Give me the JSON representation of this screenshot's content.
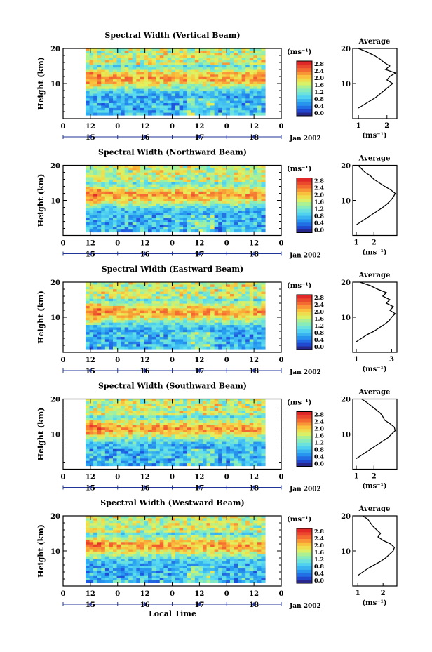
{
  "figure": {
    "xlabel": "Local Time",
    "date_label": "Jan 2002",
    "colorbar_unit": "(ms⁻¹)",
    "average_title": "Average",
    "average_xlabel": "(ms⁻¹)"
  },
  "chart_data": [
    {
      "type": "heatmap",
      "title": "Spectral Width (Vertical Beam)",
      "ylabel": "Height (km)",
      "xlabel": "Local Time",
      "hour_ticks": [
        "0",
        "12",
        "0",
        "12",
        "0",
        "12",
        "0",
        "12",
        "0"
      ],
      "day_ticks": [
        "15",
        "16",
        "17",
        "18"
      ],
      "ylim": [
        0,
        20
      ],
      "y_ticks": [
        "20",
        "10"
      ],
      "colorbar": {
        "ticks": [
          "2.8",
          "2.4",
          "2.0",
          "1.6",
          "1.2",
          "0.8",
          "0.4",
          "0.0"
        ],
        "range": [
          0,
          2.8
        ]
      },
      "profile": {
        "title": "Average",
        "xlabel": "(ms⁻¹)",
        "xlim": [
          0.8,
          2.35
        ],
        "xticks": [
          1,
          2
        ],
        "heights": [
          3,
          4,
          5,
          6,
          7,
          8,
          9,
          10,
          11,
          12,
          13,
          14,
          15,
          16,
          17,
          18,
          19,
          20
        ],
        "values": [
          1.0,
          1.2,
          1.4,
          1.6,
          1.75,
          1.9,
          2.05,
          2.2,
          2.0,
          2.1,
          2.3,
          1.95,
          2.1,
          1.9,
          1.75,
          1.55,
          1.3,
          1.0
        ]
      }
    },
    {
      "type": "heatmap",
      "title": "Spectral Width (Northward Beam)",
      "ylabel": "Height (km)",
      "xlabel": "Local Time",
      "hour_ticks": [
        "0",
        "12",
        "0",
        "12",
        "0",
        "12",
        "0",
        "12",
        "0"
      ],
      "day_ticks": [
        "15",
        "16",
        "17",
        "18"
      ],
      "ylim": [
        0,
        20
      ],
      "y_ticks": [
        "20",
        "10"
      ],
      "colorbar": {
        "ticks": [
          "2.8",
          "2.4",
          "2.0",
          "1.6",
          "1.2",
          "0.8",
          "0.4",
          "0.0"
        ],
        "range": [
          0,
          2.8
        ]
      },
      "profile": {
        "title": "Average",
        "xlabel": "(ms⁻¹)",
        "xlim": [
          0.8,
          3.3
        ],
        "xticks": [
          1,
          2
        ],
        "heights": [
          3,
          4,
          5,
          6,
          7,
          8,
          9,
          10,
          11,
          12,
          13,
          14,
          15,
          16,
          17,
          18,
          19,
          20
        ],
        "values": [
          1.0,
          1.3,
          1.6,
          1.9,
          2.2,
          2.5,
          2.75,
          2.95,
          3.1,
          3.2,
          2.95,
          2.6,
          2.3,
          2.0,
          1.8,
          1.5,
          1.3,
          1.1
        ]
      }
    },
    {
      "type": "heatmap",
      "title": "Spectral Width (Eastward Beam)",
      "ylabel": "Height (km)",
      "xlabel": "Local Time",
      "hour_ticks": [
        "0",
        "12",
        "0",
        "12",
        "0",
        "12",
        "0",
        "12",
        "0"
      ],
      "day_ticks": [
        "15",
        "16",
        "17",
        "18"
      ],
      "ylim": [
        0,
        20
      ],
      "y_ticks": [
        "20",
        "10"
      ],
      "colorbar": {
        "ticks": [
          "2.8",
          "2.4",
          "2.0",
          "1.6",
          "1.2",
          "0.8",
          "0.4",
          "0.0"
        ],
        "range": [
          0,
          2.8
        ]
      },
      "profile": {
        "title": "Average",
        "xlabel": "(ms⁻¹)",
        "xlim": [
          0.8,
          3.3
        ],
        "xticks": [
          1,
          3
        ],
        "heights": [
          3,
          4,
          5,
          6,
          7,
          8,
          9,
          10,
          11,
          12,
          13,
          14,
          15,
          16,
          17,
          18,
          19,
          20
        ],
        "values": [
          1.0,
          1.3,
          1.6,
          2.0,
          2.3,
          2.6,
          2.85,
          3.0,
          3.2,
          2.9,
          3.1,
          2.7,
          2.9,
          2.5,
          2.7,
          2.2,
          1.8,
          1.2
        ]
      }
    },
    {
      "type": "heatmap",
      "title": "Spectral Width (Southward Beam)",
      "ylabel": "Height (km)",
      "xlabel": "Local Time",
      "hour_ticks": [
        "0",
        "12",
        "0",
        "12",
        "0",
        "12",
        "0",
        "12",
        "0"
      ],
      "day_ticks": [
        "15",
        "16",
        "17",
        "18"
      ],
      "ylim": [
        0,
        20
      ],
      "y_ticks": [
        "20",
        "10"
      ],
      "colorbar": {
        "ticks": [
          "2.8",
          "2.4",
          "2.0",
          "1.6",
          "1.2",
          "0.8",
          "0.4",
          "0.0"
        ],
        "range": [
          0,
          2.8
        ]
      },
      "profile": {
        "title": "Average",
        "xlabel": "(ms⁻¹)",
        "xlim": [
          0.8,
          3.3
        ],
        "xticks": [
          1,
          2
        ],
        "heights": [
          3,
          4,
          5,
          6,
          7,
          8,
          9,
          10,
          11,
          12,
          13,
          14,
          15,
          16,
          17,
          18,
          19,
          20
        ],
        "values": [
          1.0,
          1.3,
          1.6,
          1.9,
          2.2,
          2.5,
          2.8,
          3.0,
          3.2,
          3.15,
          2.9,
          2.6,
          2.5,
          2.35,
          2.1,
          1.85,
          1.6,
          1.3
        ]
      }
    },
    {
      "type": "heatmap",
      "title": "Spectral Width (Westward Beam)",
      "ylabel": "Height (km)",
      "xlabel": "Local Time",
      "hour_ticks": [
        "0",
        "12",
        "0",
        "12",
        "0",
        "12",
        "0",
        "12",
        "0"
      ],
      "day_ticks": [
        "15",
        "16",
        "17",
        "18"
      ],
      "ylim": [
        0,
        20
      ],
      "y_ticks": [
        "20",
        "10"
      ],
      "colorbar": {
        "ticks": [
          "2.8",
          "2.4",
          "2.0",
          "1.6",
          "1.2",
          "0.8",
          "0.4",
          "0.0"
        ],
        "range": [
          0,
          2.8
        ]
      },
      "profile": {
        "title": "Average",
        "xlabel": "(ms⁻¹)",
        "xlim": [
          0.8,
          2.55
        ],
        "xticks": [
          1,
          2
        ],
        "heights": [
          3,
          4,
          5,
          6,
          7,
          8,
          9,
          10,
          11,
          12,
          13,
          14,
          15,
          16,
          17,
          18,
          19,
          20
        ],
        "values": [
          1.0,
          1.2,
          1.4,
          1.65,
          1.9,
          2.1,
          2.25,
          2.4,
          2.45,
          2.3,
          2.0,
          1.8,
          1.9,
          1.75,
          1.6,
          1.5,
          1.4,
          1.2
        ]
      }
    }
  ]
}
